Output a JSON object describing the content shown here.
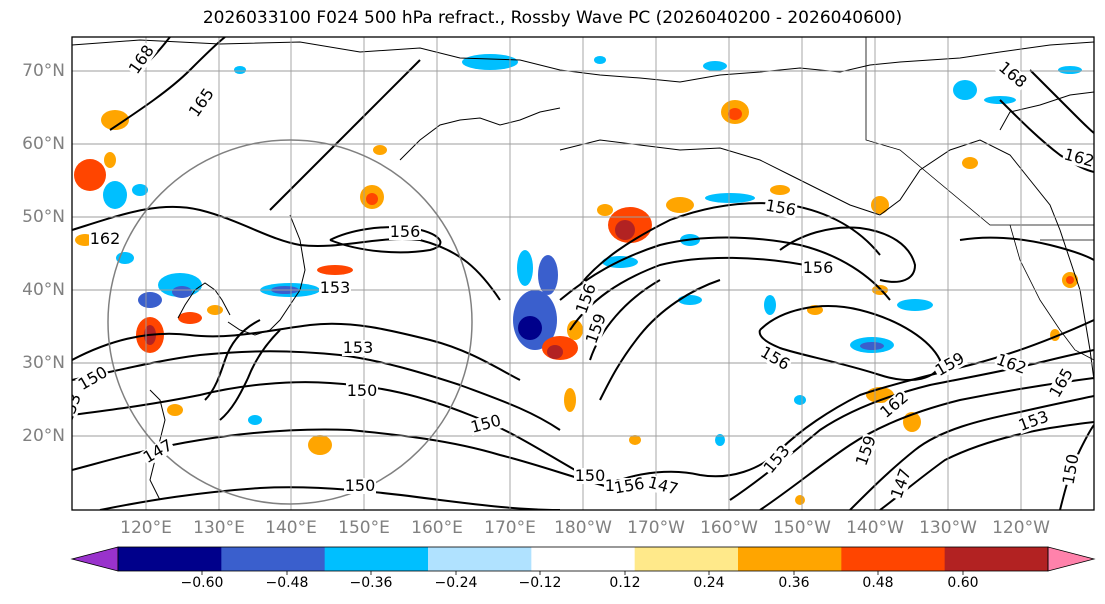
{
  "title": "2026033100 F024 500 hPa refract., Rossby Wave PC (2026040200 - 2026040600)",
  "latitude_labels": [
    "70°N",
    "60°N",
    "50°N",
    "40°N",
    "30°N",
    "20°N"
  ],
  "longitude_labels": [
    "120°E",
    "130°E",
    "140°E",
    "150°E",
    "160°E",
    "170°E",
    "180°W",
    "170°W",
    "160°W",
    "150°W",
    "140°W",
    "130°W",
    "120°W"
  ],
  "colorbar": {
    "tick_labels": [
      "−0.60",
      "−0.48",
      "−0.36",
      "−0.24",
      "−0.12",
      "0.12",
      "0.24",
      "0.36",
      "0.48",
      "0.60"
    ],
    "colors": [
      "#9932cc",
      "#00008b",
      "#3a5fcd",
      "#00bfff",
      "#b0e2ff",
      "#ffffff",
      "#ffe98a",
      "#ffa500",
      "#ff4500",
      "#b22222",
      "#ff82ab"
    ]
  },
  "contour_labels": [
    "168",
    "165",
    "162",
    "162",
    "156",
    "156",
    "156",
    "156",
    "153",
    "153",
    "153",
    "153",
    "153",
    "150",
    "150",
    "150",
    "150",
    "150",
    "150",
    "150",
    "147",
    "147",
    "147",
    "159",
    "159",
    "159",
    "162",
    "162",
    "165",
    "168",
    "156",
    "156"
  ],
  "colors": {
    "contour": "#000000",
    "grid": "#9e9e9e",
    "coast": "#000000",
    "circle": "#808080"
  }
}
